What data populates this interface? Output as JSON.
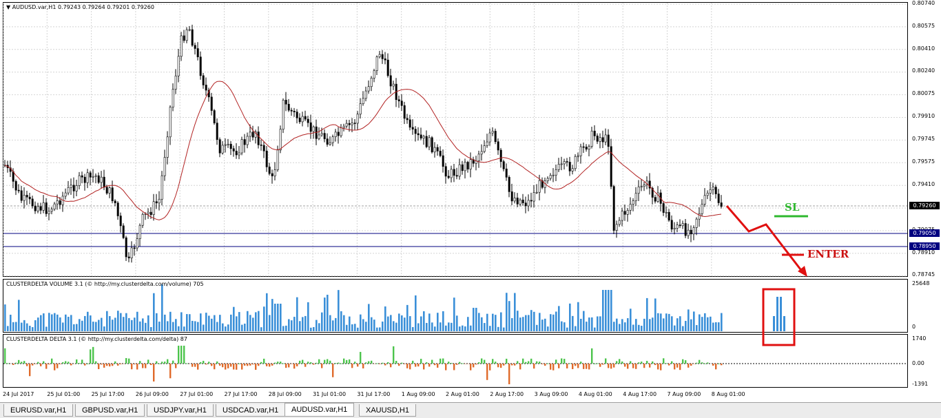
{
  "chart": {
    "title": "AUDUSD.var,H1  0.79243 0.79264 0.79201 0.79260",
    "collapse_arrow": "▼",
    "price_axis": [
      "0.80740",
      "0.80575",
      "0.80410",
      "0.80240",
      "0.80075",
      "0.79910",
      "0.79745",
      "0.79575",
      "0.79410",
      "0.79240",
      "0.79075",
      "0.78910",
      "0.78745"
    ],
    "current_price": "0.79260",
    "level_1": "0.79050",
    "level_2": "0.78950",
    "sl_label": "SL",
    "enter_label": "ENTER",
    "colors": {
      "bull": "#000000",
      "ma": "#b22222",
      "level": "#000080",
      "arrow": "#e01010",
      "sl": "#2eb82e",
      "volume": "#3a8fd8",
      "delta_pos": "#4cc44c",
      "delta_neg": "#e06a2a",
      "box": "#e01010"
    }
  },
  "volume_panel": {
    "title": "CLUSTERDELTA VOLUME 3.1 (© http://my.clusterdelta.com/volume) 705",
    "axis": [
      "25648",
      "0"
    ]
  },
  "delta_panel": {
    "title": "CLUSTERDELTA DELTA 3.1 (© http://my.clusterdelta.com/delta) 87",
    "axis": [
      "1740",
      "0.00",
      "-1391"
    ]
  },
  "time_axis": [
    "24 Jul 2017",
    "25 Jul 01:00",
    "25 Jul 17:00",
    "26 Jul 09:00",
    "27 Jul 01:00",
    "27 Jul 17:00",
    "28 Jul 09:00",
    "31 Jul 01:00",
    "31 Jul 17:00",
    "1 Aug 09:00",
    "2 Aug 01:00",
    "2 Aug 17:00",
    "3 Aug 09:00",
    "4 Aug 01:00",
    "4 Aug 17:00",
    "7 Aug 09:00",
    "8 Aug 01:00"
  ],
  "tabs": [
    {
      "label": "EURUSD.var,H1"
    },
    {
      "label": "GBPUSD.var,H1"
    },
    {
      "label": "USDJPY.var,H1"
    },
    {
      "label": "USDCAD.var,H1"
    },
    {
      "label": "AUDUSD.var,H1"
    },
    {
      "label": "XAUUSD,H1"
    }
  ]
}
